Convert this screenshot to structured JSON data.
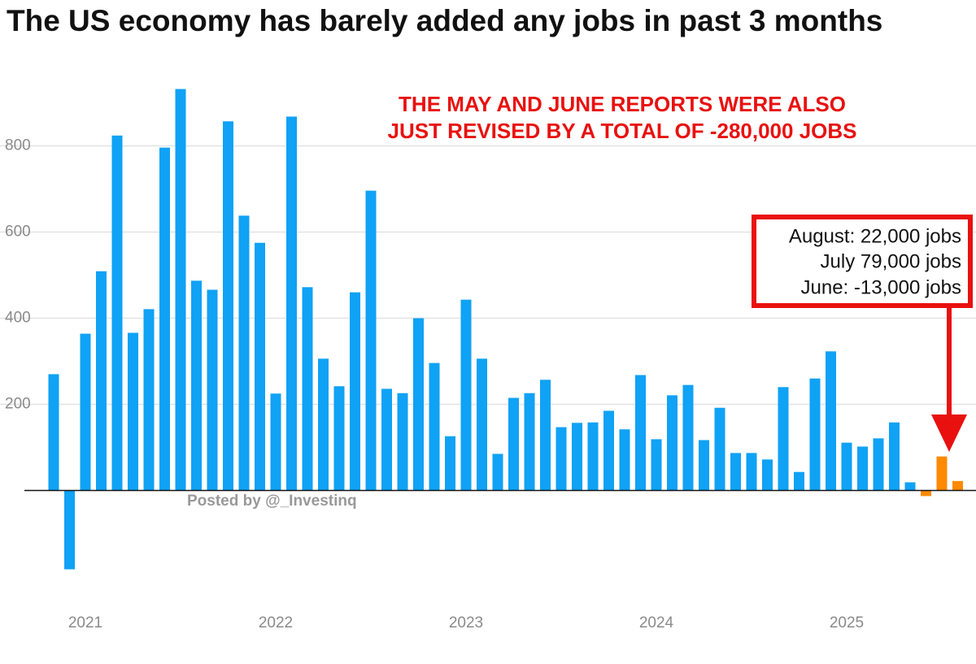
{
  "chart_data": {
    "type": "bar",
    "title": "The US economy has barely added any jobs in past 3 months",
    "annotations": [
      "THE MAY AND JUNE REPORTS WERE ALSO",
      "JUST REVISED BY A TOTAL OF -280,000 JOBS"
    ],
    "callout": [
      "August: 22,000 jobs",
      "July 79,000 jobs",
      "June: -13,000 jobs"
    ],
    "watermark": "Posted by @_Investinq",
    "categories": [
      null,
      null,
      "2021",
      null,
      null,
      null,
      null,
      null,
      null,
      null,
      null,
      null,
      null,
      null,
      "2022",
      null,
      null,
      null,
      null,
      null,
      null,
      null,
      null,
      null,
      null,
      null,
      "2023",
      null,
      null,
      null,
      null,
      null,
      null,
      null,
      null,
      null,
      null,
      null,
      "2024",
      null,
      null,
      null,
      null,
      null,
      null,
      null,
      null,
      null,
      null,
      null,
      "2025",
      null,
      null,
      null,
      null,
      null,
      null,
      null
    ],
    "values": [
      270,
      -183,
      364,
      509,
      824,
      366,
      421,
      796,
      932,
      487,
      466,
      857,
      638,
      575,
      225,
      868,
      472,
      306,
      242,
      460,
      696,
      236,
      226,
      400,
      296,
      126,
      443,
      306,
      85,
      215,
      226,
      257,
      147,
      157,
      158,
      185,
      142,
      268,
      119,
      221,
      245,
      117,
      192,
      87,
      87,
      72,
      240,
      43,
      260,
      323,
      111,
      102,
      121,
      158,
      19,
      -13,
      79,
      22
    ],
    "colors": [
      "#0fa2f5",
      "#0fa2f5",
      "#0fa2f5",
      "#0fa2f5",
      "#0fa2f5",
      "#0fa2f5",
      "#0fa2f5",
      "#0fa2f5",
      "#0fa2f5",
      "#0fa2f5",
      "#0fa2f5",
      "#0fa2f5",
      "#0fa2f5",
      "#0fa2f5",
      "#0fa2f5",
      "#0fa2f5",
      "#0fa2f5",
      "#0fa2f5",
      "#0fa2f5",
      "#0fa2f5",
      "#0fa2f5",
      "#0fa2f5",
      "#0fa2f5",
      "#0fa2f5",
      "#0fa2f5",
      "#0fa2f5",
      "#0fa2f5",
      "#0fa2f5",
      "#0fa2f5",
      "#0fa2f5",
      "#0fa2f5",
      "#0fa2f5",
      "#0fa2f5",
      "#0fa2f5",
      "#0fa2f5",
      "#0fa2f5",
      "#0fa2f5",
      "#0fa2f5",
      "#0fa2f5",
      "#0fa2f5",
      "#0fa2f5",
      "#0fa2f5",
      "#0fa2f5",
      "#0fa2f5",
      "#0fa2f5",
      "#0fa2f5",
      "#0fa2f5",
      "#0fa2f5",
      "#0fa2f5",
      "#0fa2f5",
      "#0fa2f5",
      "#0fa2f5",
      "#0fa2f5",
      "#0fa2f5",
      "#0fa2f5",
      "#ff8a00",
      "#ff8a00",
      "#ff8a00"
    ],
    "ylim": [
      -250,
      950
    ],
    "yticks": [
      200,
      400,
      600,
      800
    ],
    "grid": true
  }
}
